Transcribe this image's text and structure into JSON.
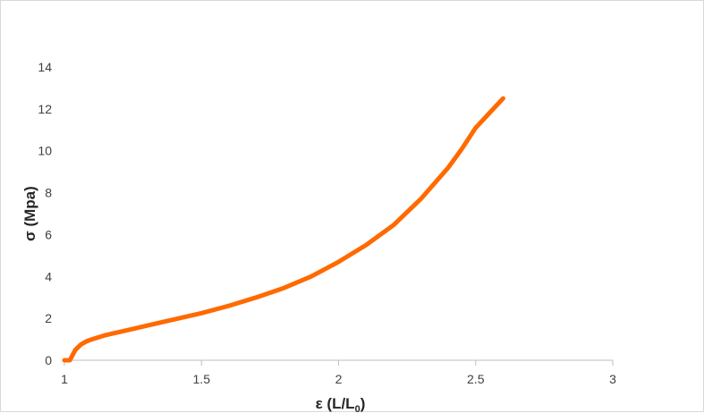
{
  "chart_data": {
    "type": "line",
    "title": "",
    "xlabel": "ε (L/L",
    "xlabel_subscript": "0",
    "xlabel_close": ")",
    "ylabel": "σ (Mpa)",
    "xlim": [
      1,
      3
    ],
    "ylim": [
      0,
      14
    ],
    "x_ticks": [
      "1",
      "1.5",
      "2",
      "2.5",
      "3"
    ],
    "y_ticks": [
      "0",
      "2",
      "4",
      "6",
      "8",
      "10",
      "12",
      "14"
    ],
    "grid": false,
    "legend": "none",
    "series": [
      {
        "color": "#ff6a00",
        "x": [
          1.0,
          1.01,
          1.02,
          1.03,
          1.04,
          1.06,
          1.08,
          1.1,
          1.15,
          1.2,
          1.25,
          1.3,
          1.4,
          1.5,
          1.6,
          1.7,
          1.8,
          1.9,
          2.0,
          2.1,
          2.2,
          2.3,
          2.4,
          2.45,
          2.5,
          2.55,
          2.6
        ],
        "y": [
          0.0,
          0.0,
          0.0,
          0.25,
          0.5,
          0.75,
          0.9,
          1.0,
          1.2,
          1.35,
          1.5,
          1.65,
          1.95,
          2.25,
          2.6,
          3.0,
          3.45,
          4.0,
          4.7,
          5.5,
          6.45,
          7.7,
          9.2,
          10.1,
          11.1,
          11.8,
          12.5
        ]
      }
    ]
  }
}
